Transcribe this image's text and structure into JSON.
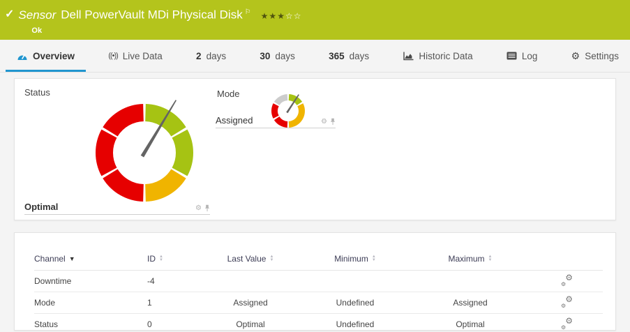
{
  "header": {
    "kind_label": "Sensor",
    "title": "Dell PowerVault MDi Physical Disk",
    "status": "Ok",
    "bg_color": "#b4c41c",
    "rating": "3 of 5 stars"
  },
  "icons": {
    "check": "✓",
    "flag": "⚐",
    "stars_filled": "★★★",
    "stars_empty": "☆☆",
    "broadcast": "((•))",
    "gear": "⚙",
    "sort_desc": "▼",
    "sort_up": "▲",
    "sort_down": "▼"
  },
  "accent_color": "#2196cf",
  "tabs": [
    {
      "label": "Overview",
      "active": true
    },
    {
      "label": "Live Data"
    },
    {
      "num": "2",
      "unit": "days"
    },
    {
      "num": "30",
      "unit": "days"
    },
    {
      "num": "365",
      "unit": "days"
    },
    {
      "label": "Historic Data"
    },
    {
      "label": "Log"
    },
    {
      "label": "Settings"
    }
  ],
  "gauges": {
    "status": {
      "label": "Status",
      "value": "Optimal",
      "needle_angle": 31,
      "segments": [
        {
          "from": 0,
          "to": 60,
          "color": "#a6c313"
        },
        {
          "from": 60,
          "to": 120,
          "color": "#a6c313"
        },
        {
          "from": 120,
          "to": 180,
          "color": "#f0b400"
        },
        {
          "from": 180,
          "to": 240,
          "color": "#e60000"
        },
        {
          "from": 240,
          "to": 300,
          "color": "#e60000"
        },
        {
          "from": 300,
          "to": 360,
          "color": "#e60000"
        }
      ]
    },
    "mode": {
      "label": "Mode",
      "value": "Assigned",
      "needle_angle": 33,
      "segments": [
        {
          "from": 0,
          "to": 60,
          "color": "#a6c313"
        },
        {
          "from": 60,
          "to": 180,
          "color": "#f0b400"
        },
        {
          "from": 180,
          "to": 240,
          "color": "#e60000"
        },
        {
          "from": 240,
          "to": 300,
          "color": "#e60000"
        },
        {
          "from": 300,
          "to": 360,
          "color": "#cccccc"
        }
      ]
    }
  },
  "table": {
    "columns": [
      {
        "label": "Channel",
        "sort": "desc"
      },
      {
        "label": "ID",
        "sort": "both"
      },
      {
        "label": "Last Value",
        "sort": "both"
      },
      {
        "label": "Minimum",
        "sort": "both"
      },
      {
        "label": "Maximum",
        "sort": "both"
      }
    ],
    "rows": [
      {
        "channel": "Downtime",
        "id": "-4",
        "last_value": "",
        "minimum": "",
        "maximum": ""
      },
      {
        "channel": "Mode",
        "id": "1",
        "last_value": "Assigned",
        "minimum": "Undefined",
        "maximum": "Assigned"
      },
      {
        "channel": "Status",
        "id": "0",
        "last_value": "Optimal",
        "minimum": "Undefined",
        "maximum": "Optimal"
      }
    ]
  }
}
